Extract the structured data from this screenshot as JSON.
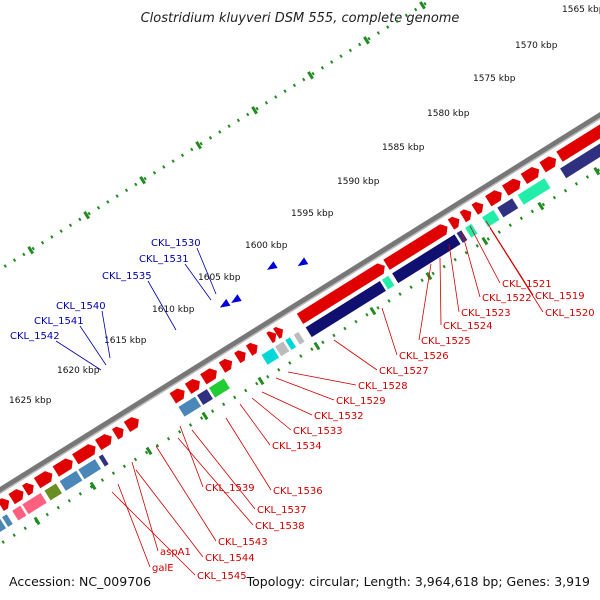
{
  "title": "Clostridium kluyveri DSM 555, complete genome",
  "footer": {
    "accession": "Accession: NC_009706",
    "summary": "Topology: circular; Length: 3,964,618 bp; Genes: 3,919"
  },
  "colors": {
    "forward_gene": "#e00000",
    "reverse_gene": "#0000dd",
    "forward_label": "#d00000",
    "reverse_label": "#0000aa",
    "backbone": "#777777",
    "tick": "#228b22",
    "cog_navy": "#101070",
    "cog_steel": "#4a86b8",
    "cog_cyan": "#00d8d8",
    "cog_gray": "#bbbbbb",
    "cog_green": "#22cc33",
    "cog_pink": "#ff6080",
    "cog_olive": "#6b8e23",
    "cog_purple": "#303080",
    "cog_teal": "#22eeaa"
  },
  "kbp_ticks": [
    "1565 kbp",
    "1570 kbp",
    "1575 kbp",
    "1580 kbp",
    "1585 kbp",
    "1590 kbp",
    "1595 kbp",
    "1600 kbp",
    "1605 kbp",
    "1610 kbp",
    "1615 kbp",
    "1620 kbp",
    "1625 kbp"
  ],
  "reverse_labels": [
    "CKL_1530",
    "CKL_1531",
    "CKL_1535",
    "CKL_1540",
    "CKL_1541",
    "CKL_1542"
  ],
  "forward_labels": [
    "CKL_1521",
    "CKL_1519",
    "CKL_1522",
    "CKL_1520",
    "CKL_1523",
    "CKL_1524",
    "CKL_1525",
    "CKL_1526",
    "CKL_1527",
    "CKL_1528",
    "CKL_1529",
    "CKL_1532",
    "CKL_1533",
    "CKL_1534",
    "CKL_1536",
    "CKL_1539",
    "CKL_1537",
    "CKL_1538",
    "CKL_1543",
    "aspA1",
    "CKL_1544",
    "galE",
    "CKL_1545"
  ]
}
